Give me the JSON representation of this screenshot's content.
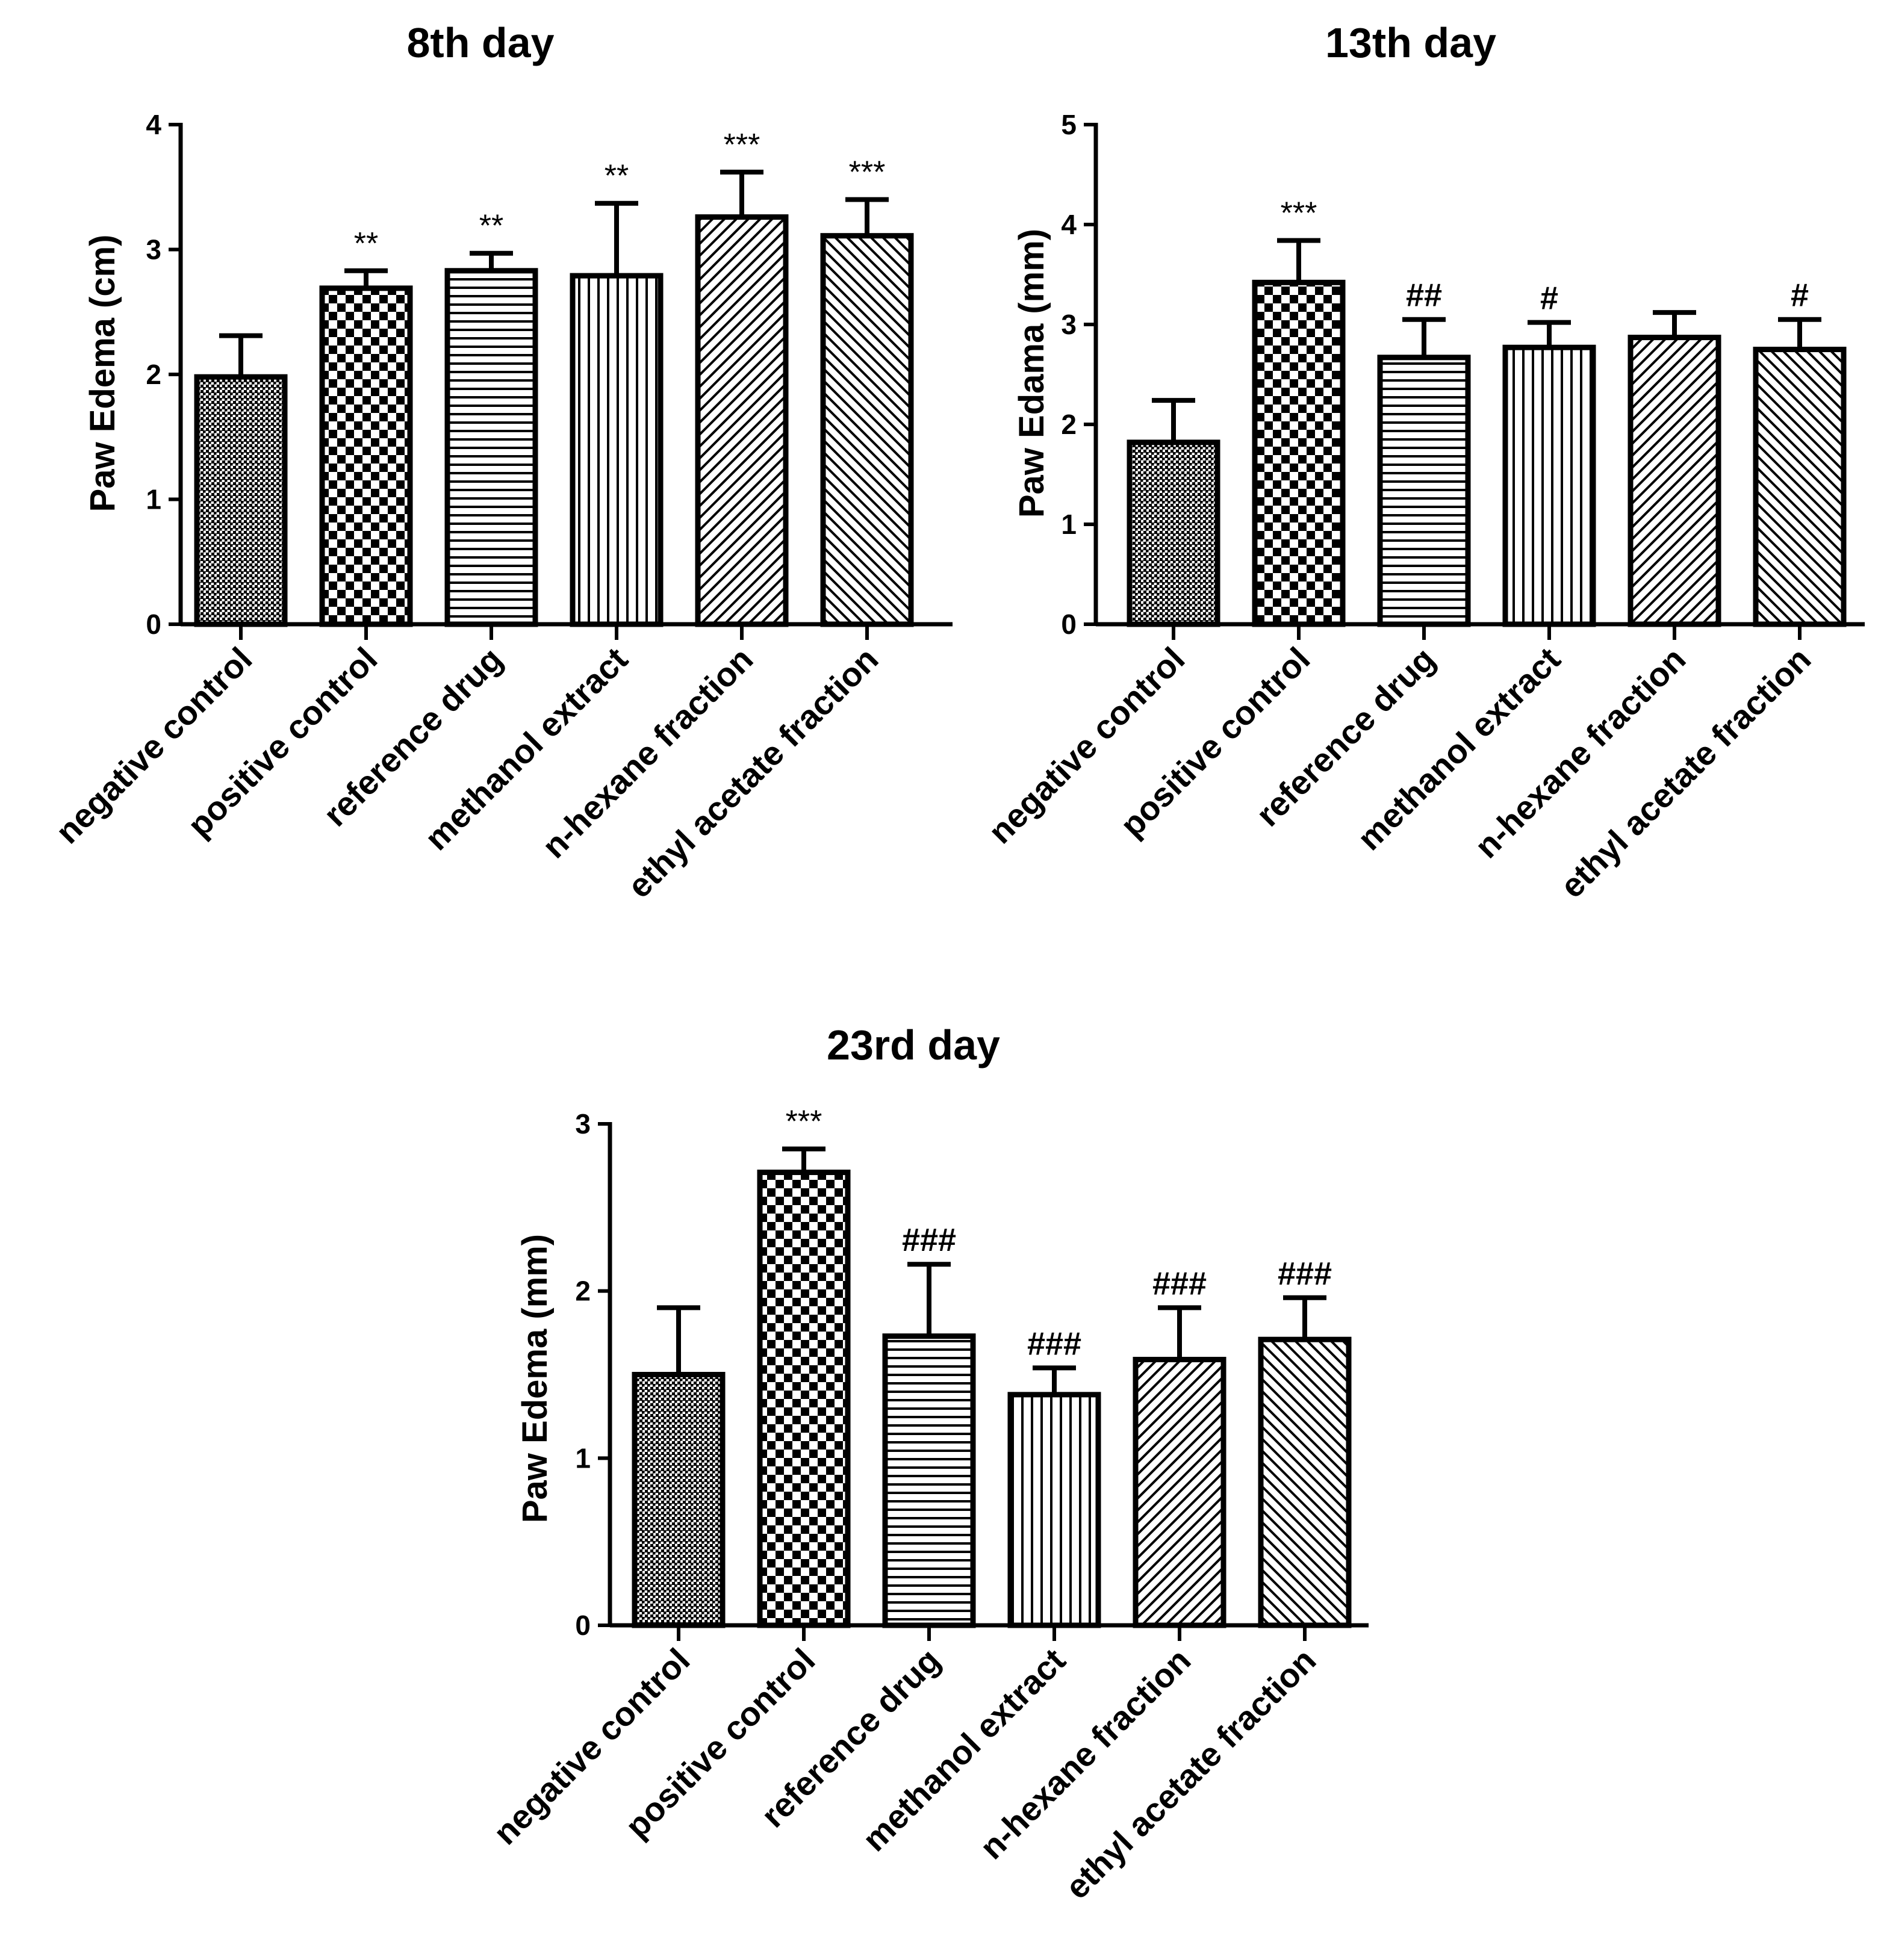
{
  "chart_data": [
    {
      "type": "bar",
      "title": "8th day",
      "xlabel": "",
      "ylabel": "Paw Edema (cm)",
      "ylim": [
        0,
        4
      ],
      "yticks": [
        0,
        1,
        2,
        3,
        4
      ],
      "grid": false,
      "categories": [
        "negative control",
        "positive control",
        "reference drug",
        "methanol extract",
        "n-hexane fraction",
        "ethyl acetate fraction"
      ],
      "patterns": [
        "dense-cross",
        "checker",
        "horizontal",
        "vertical",
        "diagonal-right",
        "diagonal-left"
      ],
      "values": [
        1.98,
        2.69,
        2.83,
        2.79,
        3.26,
        3.11
      ],
      "errors": [
        0.33,
        0.14,
        0.14,
        0.58,
        0.36,
        0.29
      ],
      "annotations": [
        "",
        "**",
        "**",
        "**",
        "***",
        "***"
      ]
    },
    {
      "type": "bar",
      "title": "13th day",
      "xlabel": "",
      "ylabel": "Paw Edama (mm)",
      "ylim": [
        0,
        5
      ],
      "yticks": [
        0,
        1,
        2,
        3,
        4,
        5
      ],
      "grid": false,
      "categories": [
        "negative control",
        "positive control",
        "reference drug",
        "methanol extract",
        "n-hexane fraction",
        "ethyl acetate fraction"
      ],
      "patterns": [
        "dense-cross",
        "checker",
        "horizontal",
        "vertical",
        "diagonal-right",
        "diagonal-left"
      ],
      "values": [
        1.82,
        3.42,
        2.67,
        2.77,
        2.87,
        2.75
      ],
      "errors": [
        0.42,
        0.42,
        0.38,
        0.25,
        0.25,
        0.3
      ],
      "annotations": [
        "",
        "***",
        "##",
        "#",
        "",
        "#"
      ]
    },
    {
      "type": "bar",
      "title": "23rd day",
      "xlabel": "",
      "ylabel": "Paw Edema (mm)",
      "ylim": [
        0,
        3
      ],
      "yticks": [
        0,
        1,
        2,
        3
      ],
      "grid": false,
      "categories": [
        "negative control",
        "positive control",
        "reference drug",
        "methanol extract",
        "n-hexane fraction",
        "ethyl acetate fraction"
      ],
      "patterns": [
        "dense-cross",
        "checker",
        "horizontal",
        "vertical",
        "diagonal-right",
        "diagonal-left"
      ],
      "values": [
        1.5,
        2.71,
        1.73,
        1.38,
        1.59,
        1.71
      ],
      "errors": [
        0.4,
        0.14,
        0.43,
        0.16,
        0.31,
        0.25
      ],
      "annotations": [
        "",
        "***",
        "###",
        "###",
        "###",
        "###"
      ]
    }
  ]
}
